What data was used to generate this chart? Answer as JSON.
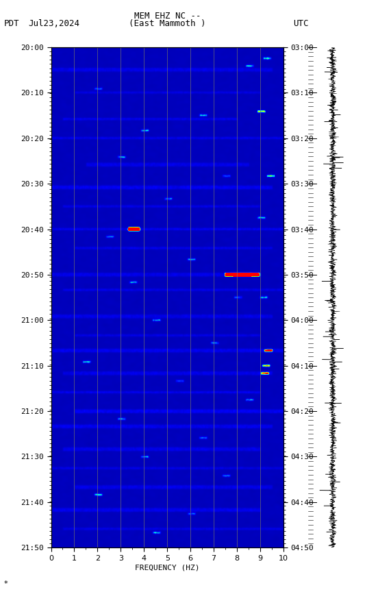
{
  "title_line1": "MEM EHZ NC --",
  "title_line2": "(East Mammoth )",
  "label_left": "PDT",
  "label_date": "Jul23,2024",
  "label_right": "UTC",
  "time_ticks_left": [
    "20:00",
    "20:10",
    "20:20",
    "20:30",
    "20:40",
    "20:50",
    "21:00",
    "21:10",
    "21:20",
    "21:30",
    "21:40",
    "21:50"
  ],
  "time_ticks_right": [
    "03:00",
    "03:10",
    "03:20",
    "03:30",
    "03:40",
    "03:50",
    "04:00",
    "04:10",
    "04:20",
    "04:30",
    "04:40",
    "04:50"
  ],
  "freq_ticks": [
    0,
    1,
    2,
    3,
    4,
    5,
    6,
    7,
    8,
    9,
    10
  ],
  "xlabel": "FREQUENCY (HZ)",
  "vertical_line_color": "#808060",
  "figure_width": 5.52,
  "figure_height": 8.64,
  "dpi": 100,
  "colormap": [
    [
      0.0,
      "#0000A0"
    ],
    [
      0.25,
      "#0000CC"
    ],
    [
      0.45,
      "#0000FF"
    ],
    [
      0.55,
      "#0040FF"
    ],
    [
      0.65,
      "#00CCCC"
    ],
    [
      0.72,
      "#00FFFF"
    ],
    [
      0.8,
      "#80FF00"
    ],
    [
      0.88,
      "#FFFF00"
    ],
    [
      0.94,
      "#FF8000"
    ],
    [
      1.0,
      "#FF0000"
    ]
  ]
}
